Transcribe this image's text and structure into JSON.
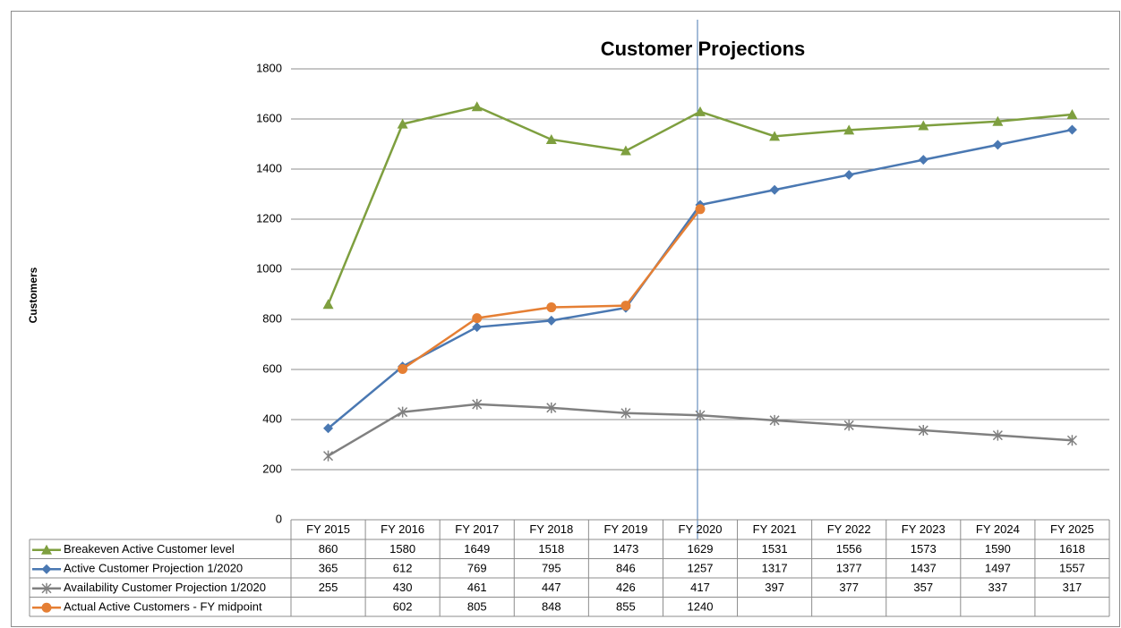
{
  "chart_data": {
    "type": "line",
    "title": "Customer Projections",
    "y_label": "Customers",
    "categories": [
      "FY 2015",
      "FY 2016",
      "FY 2017",
      "FY 2018",
      "FY 2019",
      "FY 2020",
      "FY 2021",
      "FY 2022",
      "FY 2023",
      "FY 2024",
      "FY 2025"
    ],
    "series": [
      {
        "name": "Breakeven Active Customer level",
        "color": "#7e9f3f",
        "marker": "triangle",
        "values": [
          860,
          1580,
          1649,
          1518,
          1473,
          1629,
          1531,
          1556,
          1573,
          1590,
          1618
        ]
      },
      {
        "name": "Active Customer Projection 1/2020",
        "color": "#4a78b2",
        "marker": "diamond",
        "values": [
          365,
          612,
          769,
          795,
          846,
          1257,
          1317,
          1377,
          1437,
          1497,
          1557
        ]
      },
      {
        "name": "Availability Customer Projection 1/2020",
        "color": "#808080",
        "marker": "star",
        "values": [
          255,
          430,
          461,
          447,
          426,
          417,
          397,
          377,
          357,
          337,
          317
        ]
      },
      {
        "name": "Actual Active Customers - FY midpoint",
        "color": "#e57f34",
        "marker": "circle",
        "values": [
          null,
          602,
          805,
          848,
          855,
          1240,
          null,
          null,
          null,
          null,
          null
        ]
      }
    ],
    "ylim": [
      0,
      1800
    ],
    "yticks": [
      0,
      200,
      400,
      600,
      800,
      1000,
      1200,
      1400,
      1600,
      1800
    ],
    "grid": true,
    "data_table": true
  }
}
